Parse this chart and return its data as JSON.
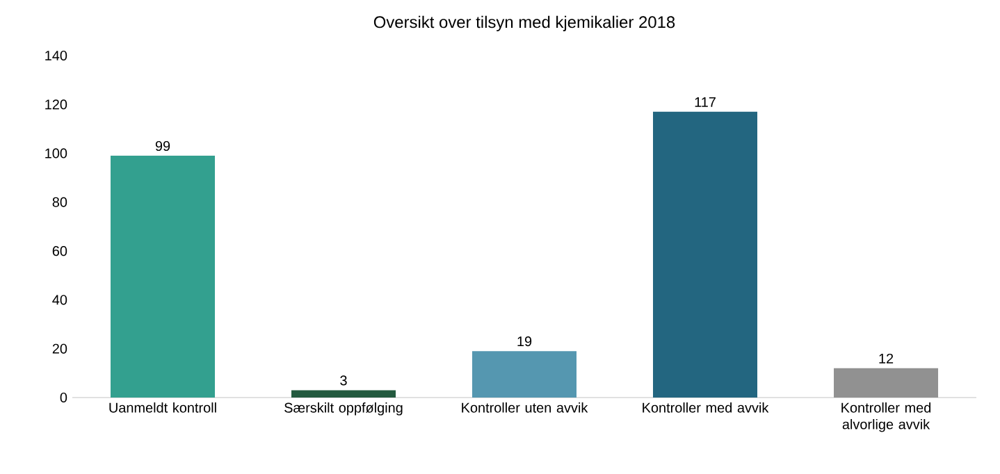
{
  "chart_data": {
    "type": "bar",
    "title": "Oversikt over tilsyn med kjemikalier 2018",
    "categories": [
      "Uanmeldt kontroll",
      "Særskilt oppfølging",
      "Kontroller uten avvik",
      "Kontroller med avvik",
      "Kontroller med alvorlige avvik"
    ],
    "values": [
      99,
      3,
      19,
      117,
      12
    ],
    "colors": [
      "#33a08f",
      "#235a3f",
      "#5597b0",
      "#236680",
      "#919191"
    ],
    "ylim": [
      0,
      140
    ],
    "yticks": [
      0,
      20,
      40,
      60,
      80,
      100,
      120,
      140
    ],
    "data_labels": true
  }
}
